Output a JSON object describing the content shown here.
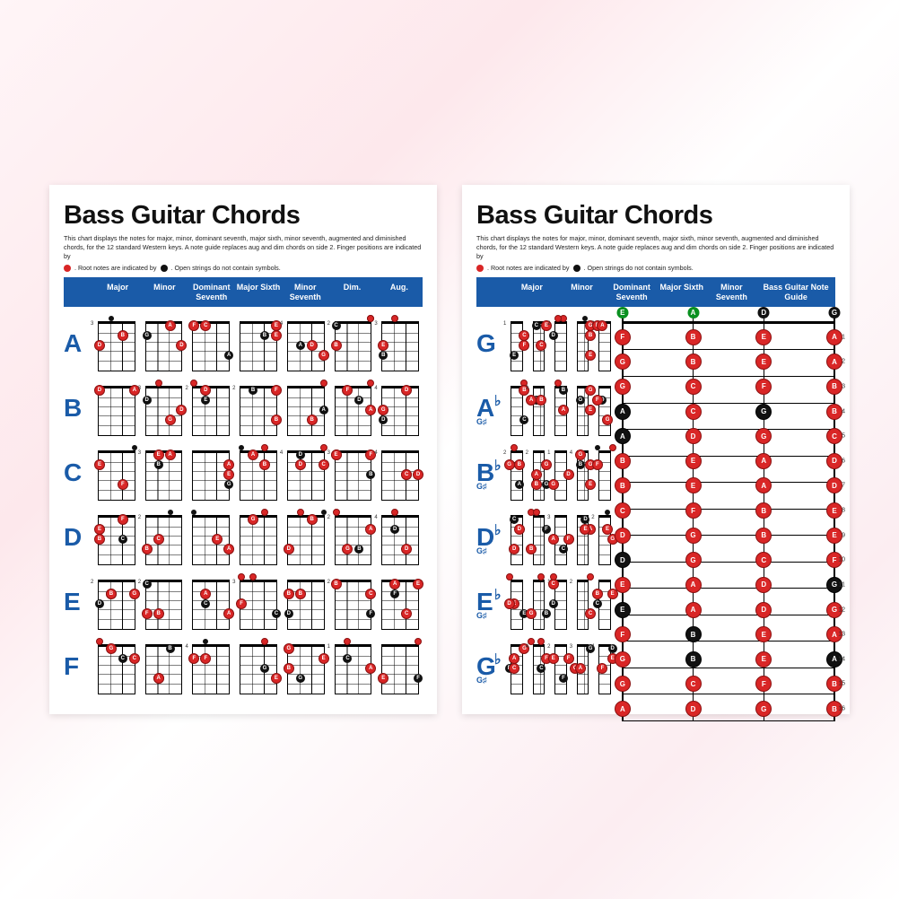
{
  "title": "Bass Guitar Chords",
  "subtitle": "This chart displays the notes for major, minor, dominant seventh, major sixth, minor seventh, augmented and diminished chords, for the 12 standard Western keys. A note guide replaces aug and dim chords on side 2. Finger positions are indicated by",
  "legend": {
    "part2": ". Root notes are indicated by",
    "part3": ". Open strings do not contain symbols."
  },
  "colors": {
    "header_bg": "#1a5ba8",
    "key_label": "#1a5ba8",
    "finger_dot": "#d92626",
    "root_dot": "#111111",
    "open_note": "#0a9020"
  },
  "poster1": {
    "headers": [
      "Major",
      "Minor",
      "Dominant Seventh",
      "Major Sixth",
      "Minor Seventh",
      "Dim.",
      "Aug."
    ],
    "keys": [
      {
        "label": "A",
        "flat": "",
        "sharp": ""
      },
      {
        "label": "B",
        "flat": "",
        "sharp": ""
      },
      {
        "label": "C",
        "flat": "",
        "sharp": ""
      },
      {
        "label": "D",
        "flat": "",
        "sharp": ""
      },
      {
        "label": "E",
        "flat": "",
        "sharp": ""
      },
      {
        "label": "F",
        "flat": "",
        "sharp": ""
      }
    ]
  },
  "poster2": {
    "headers": [
      "Major",
      "Minor",
      "Dominant Seventh",
      "Major Sixth",
      "Minor Seventh"
    ],
    "note_guide_header": "Bass Guitar Note Guide",
    "keys": [
      {
        "label": "G",
        "flat": "",
        "sharp": ""
      },
      {
        "label": "A",
        "flat": "♭",
        "sharp": "G♯"
      },
      {
        "label": "B",
        "flat": "♭",
        "sharp": "G♯"
      },
      {
        "label": "D",
        "flat": "♭",
        "sharp": "G♯"
      },
      {
        "label": "E",
        "flat": "♭",
        "sharp": "G♯"
      },
      {
        "label": "G",
        "flat": "♭",
        "sharp": "G♯"
      }
    ],
    "note_guide": {
      "open": [
        "E",
        "A",
        "D",
        "G"
      ],
      "frets": [
        [
          "F",
          "B",
          "E",
          "A"
        ],
        [
          "G",
          "B",
          "E",
          "A"
        ],
        [
          "G",
          "C",
          "F",
          "B"
        ],
        [
          "A",
          "C",
          "G",
          "B"
        ],
        [
          "A",
          "D",
          "G",
          "C"
        ],
        [
          "B",
          "E",
          "A",
          "D"
        ],
        [
          "B",
          "E",
          "A",
          "D"
        ],
        [
          "C",
          "F",
          "B",
          "E"
        ],
        [
          "D",
          "G",
          "B",
          "E"
        ],
        [
          "D",
          "G",
          "C",
          "F"
        ],
        [
          "E",
          "A",
          "D",
          "G"
        ],
        [
          "E",
          "A",
          "D",
          "G"
        ],
        [
          "F",
          "B",
          "E",
          "A"
        ],
        [
          "G",
          "B",
          "E",
          "A"
        ],
        [
          "G",
          "C",
          "F",
          "B"
        ],
        [
          "A",
          "D",
          "G",
          "B"
        ]
      ],
      "fret_numbers": [
        1,
        2,
        3,
        4,
        5,
        6,
        7,
        8,
        9,
        10,
        11,
        12,
        13,
        14,
        15,
        16
      ]
    }
  },
  "sample_dots": {
    "noteA": "A",
    "noteB": "B",
    "noteC": "C",
    "noteD": "D",
    "noteE": "E",
    "noteF": "F",
    "noteG": "G"
  }
}
